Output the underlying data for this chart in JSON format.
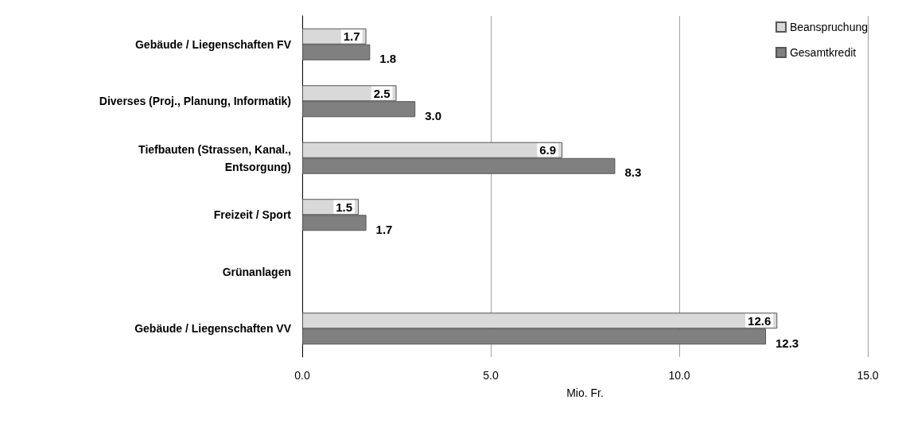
{
  "chart_data": {
    "type": "bar",
    "orientation": "horizontal",
    "xlabel": "Mio. Fr.",
    "categories": [
      "Gebäude / Liegenschaften FV",
      "Diverses (Proj., Planung, Informatik)",
      "Tiefbauten (Strassen, Kanal.,\nEntsorgung)",
      "Freizeit / Sport",
      "Grünanlagen",
      "Gebäude / Liegenschaften VV"
    ],
    "series": [
      {
        "name": "Beanspruchung",
        "color": "#d9d9d9",
        "values": [
          1.7,
          2.5,
          6.9,
          1.5,
          null,
          12.6
        ],
        "value_labels": [
          "1.7",
          "2.5",
          "6.9",
          "1.5",
          null,
          "12.6"
        ]
      },
      {
        "name": "Gesamtkredit",
        "color": "#808080",
        "values": [
          1.8,
          3.0,
          8.3,
          1.7,
          null,
          12.3
        ],
        "value_labels": [
          "1.8",
          "3.0",
          "8.3",
          "1.7",
          null,
          "12.3"
        ]
      }
    ],
    "xlim": [
      0,
      15
    ],
    "xticks": [
      {
        "value": 0,
        "label": "0.0"
      },
      {
        "value": 5,
        "label": "5.0"
      },
      {
        "value": 10,
        "label": "10.0"
      },
      {
        "value": 15,
        "label": "15.0"
      }
    ],
    "grid": "x",
    "legend": "top right"
  }
}
